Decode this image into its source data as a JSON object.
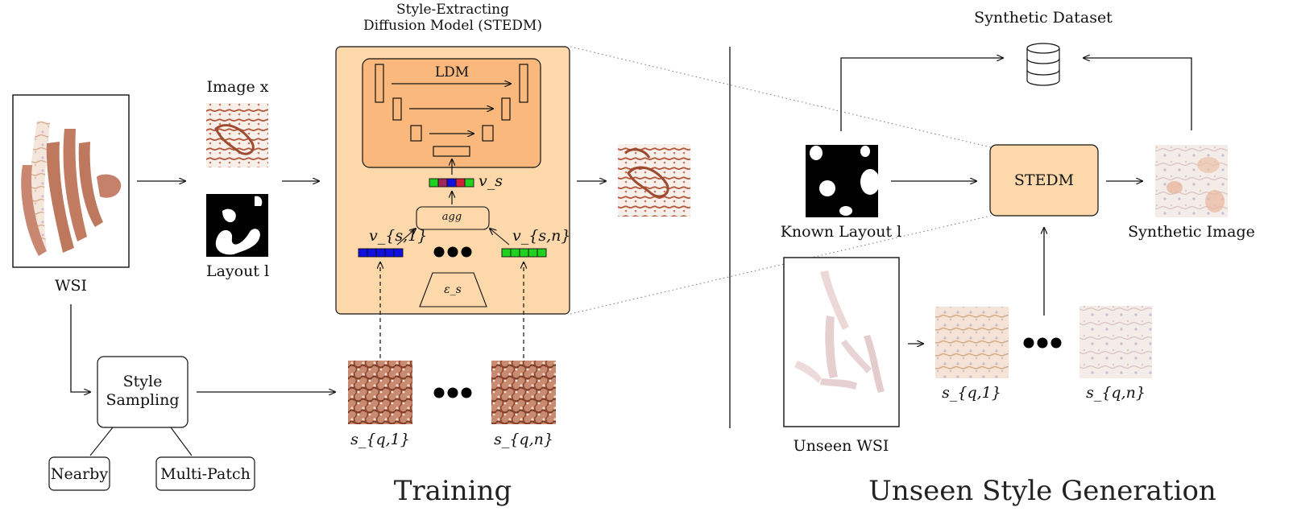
{
  "training": {
    "wsi_label": "WSI",
    "image_label": "Image x",
    "layout_label": "Layout l",
    "model_title_line1": "Style-Extracting",
    "model_title_line2": "Diffusion Model (STEDM)",
    "ldm_label": "LDM",
    "agg_label": "agg",
    "vs_label": "v_s",
    "vs1_label": "v_{s,1}",
    "vsn_label": "v_{s,n}",
    "encoder_label": "ε_s",
    "style_sampling_line1": "Style",
    "style_sampling_line2": "Sampling",
    "nearby_label": "Nearby",
    "multipatch_label": "Multi-Patch",
    "sq1_label": "s_{q,1}",
    "sqn_label": "s_{q,n}",
    "section_title": "Training"
  },
  "generation": {
    "dataset_label": "Synthetic Dataset",
    "known_layout_label": "Known Layout l",
    "stedm_label": "STEDM",
    "synthetic_image_label": "Synthetic Image",
    "unseen_wsi_label": "Unseen WSI",
    "sq1_label": "s_{q,1}",
    "sqn_label": "s_{q,n}",
    "section_title": "Unseen Style Generation"
  },
  "colors": {
    "stedm_fill": "#fcd8aa",
    "ldm_fill": "#fbb87c",
    "tissue_stain": "#b86a4c",
    "vec_blue": "#1010e0",
    "vec_green": "#1ed21e",
    "vec_red": "#d2203a"
  }
}
